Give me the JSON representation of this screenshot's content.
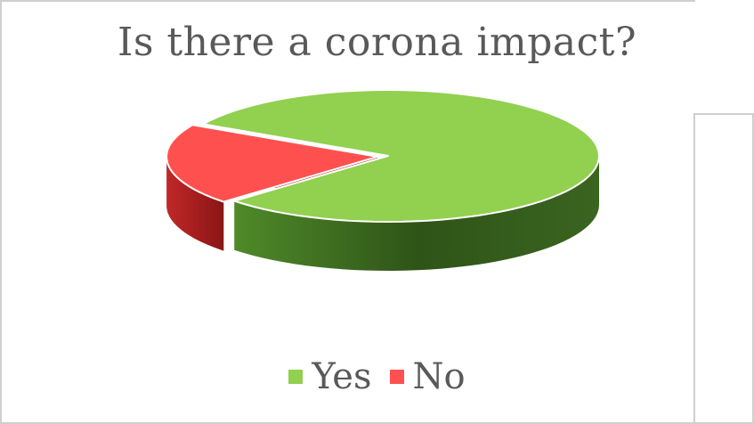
{
  "chart_data": {
    "type": "pie",
    "title": "Is there a corona impact?",
    "categories": [
      "Yes",
      "No"
    ],
    "values": [
      80,
      20
    ],
    "colors": [
      "#92d050",
      "#ff5050"
    ],
    "side_colors": [
      "#3d6b1e",
      "#9e1c1c"
    ],
    "style": "3d-exploded",
    "legend_position": "bottom"
  }
}
